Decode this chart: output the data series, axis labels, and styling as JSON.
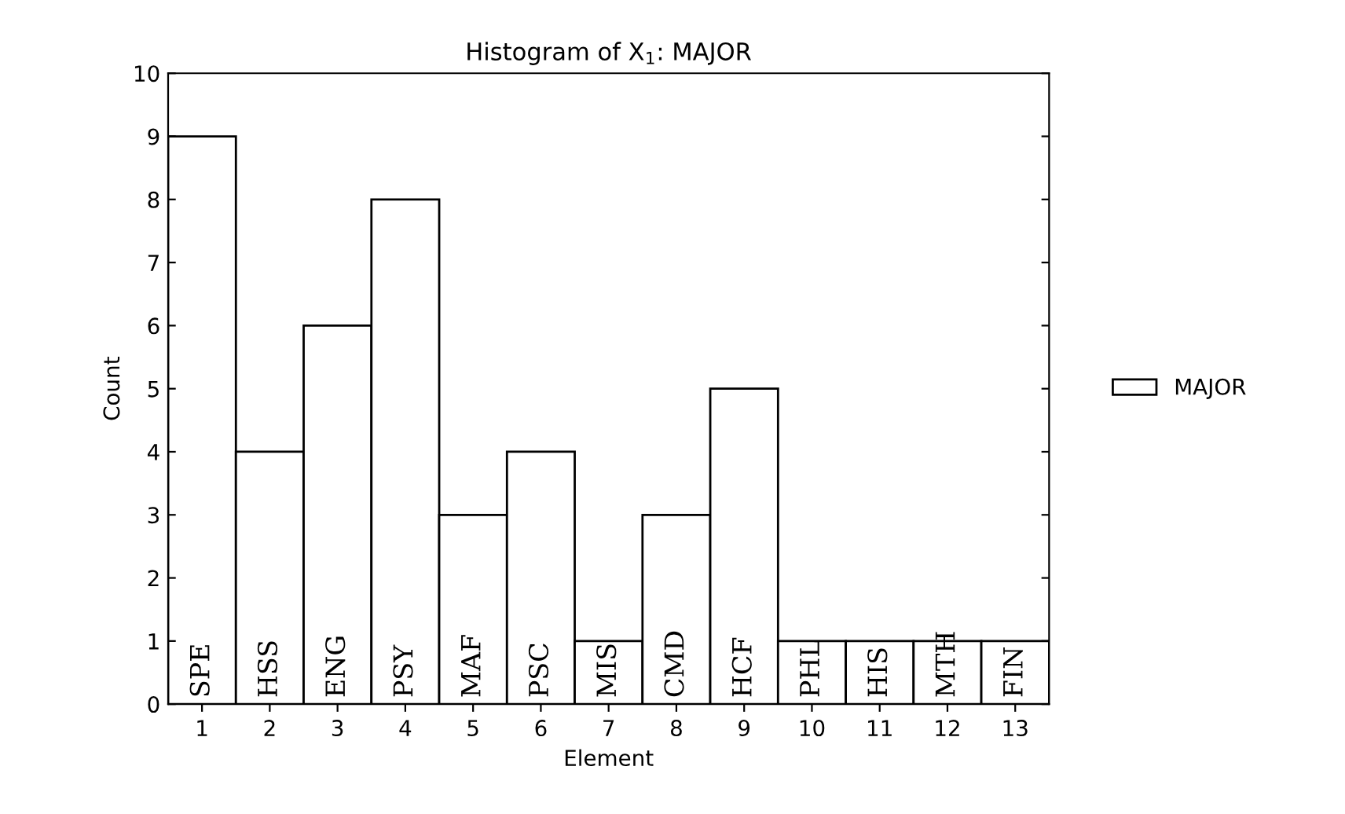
{
  "chart_data": {
    "type": "bar",
    "title": "Histogram of X$_{1}$: MAJOR",
    "xlabel": "Element",
    "ylabel": "Count",
    "categories": [
      "1",
      "2",
      "3",
      "4",
      "5",
      "6",
      "7",
      "8",
      "9",
      "10",
      "11",
      "12",
      "13"
    ],
    "series": [
      {
        "name": "MAJOR",
        "color": "#ffffff",
        "values": [
          9,
          4,
          6,
          8,
          3,
          4,
          1,
          3,
          5,
          1,
          1,
          1,
          1
        ]
      }
    ],
    "ylim": [
      0,
      10
    ],
    "yticks": [
      0,
      1,
      2,
      3,
      4,
      5,
      6,
      7,
      8,
      9,
      10
    ],
    "grid": false,
    "legend": "right",
    "annotations": [
      "SPE",
      "HSS",
      "ENG",
      "PSY",
      "MAF",
      "PSC",
      "MIS",
      "CMD",
      "HCF",
      "PHL",
      "HIS",
      "MTH",
      "FIN"
    ]
  }
}
